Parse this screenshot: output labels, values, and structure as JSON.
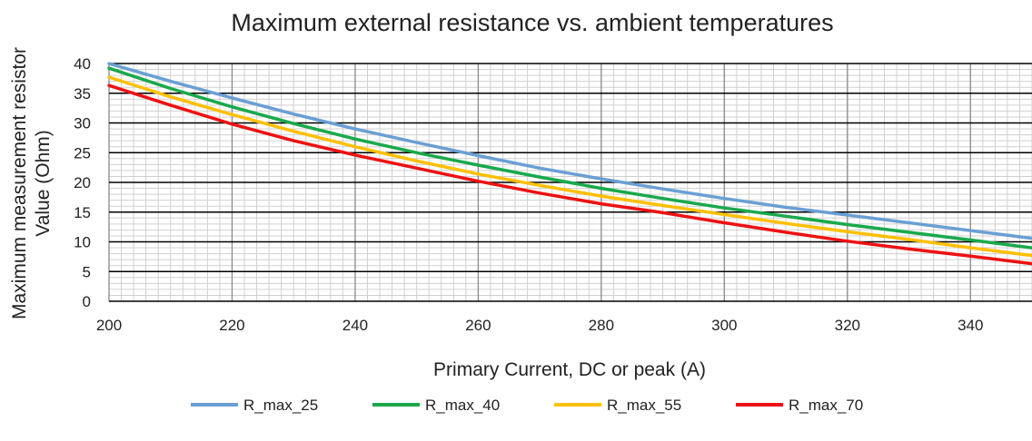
{
  "chart_data": {
    "type": "line",
    "title": "Maximum external resistance vs. ambient temperatures",
    "xlabel": "Primary Current, DC or peak (A)",
    "ylabel_lines": [
      "Maximum measurement resistor",
      "Value (Ohm)"
    ],
    "xlim": [
      200,
      350
    ],
    "ylim": [
      0,
      40
    ],
    "x_ticks": [
      200,
      220,
      240,
      260,
      280,
      300,
      320,
      340
    ],
    "y_ticks": [
      0,
      5,
      10,
      15,
      20,
      25,
      30,
      35,
      40
    ],
    "grid": true,
    "legend_position": "bottom",
    "x": [
      200,
      210,
      220,
      230,
      240,
      250,
      260,
      270,
      280,
      290,
      300,
      310,
      320,
      330,
      340,
      350
    ],
    "series": [
      {
        "name": "R_max_25",
        "color": "#6a9fd4",
        "values": [
          40.0,
          37.0,
          34.2,
          31.5,
          29.0,
          26.7,
          24.5,
          22.4,
          20.6,
          18.9,
          17.3,
          15.8,
          14.5,
          13.2,
          11.9,
          10.6
        ]
      },
      {
        "name": "R_max_40",
        "color": "#19a94b",
        "values": [
          39.2,
          35.8,
          32.7,
          29.9,
          27.3,
          25.0,
          22.9,
          20.9,
          19.0,
          17.3,
          15.7,
          14.3,
          12.9,
          11.6,
          10.3,
          9.0
        ]
      },
      {
        "name": "R_max_55",
        "color": "#ffc000",
        "values": [
          37.7,
          34.4,
          31.4,
          28.6,
          26.0,
          23.6,
          21.4,
          19.5,
          17.7,
          16.1,
          14.6,
          13.1,
          11.7,
          10.4,
          9.0,
          7.7
        ]
      },
      {
        "name": "R_max_70",
        "color": "#ee1111",
        "values": [
          36.3,
          33.0,
          29.8,
          27.0,
          24.6,
          22.4,
          20.2,
          18.2,
          16.4,
          14.9,
          13.2,
          11.6,
          10.1,
          8.8,
          7.6,
          6.3
        ]
      }
    ]
  }
}
